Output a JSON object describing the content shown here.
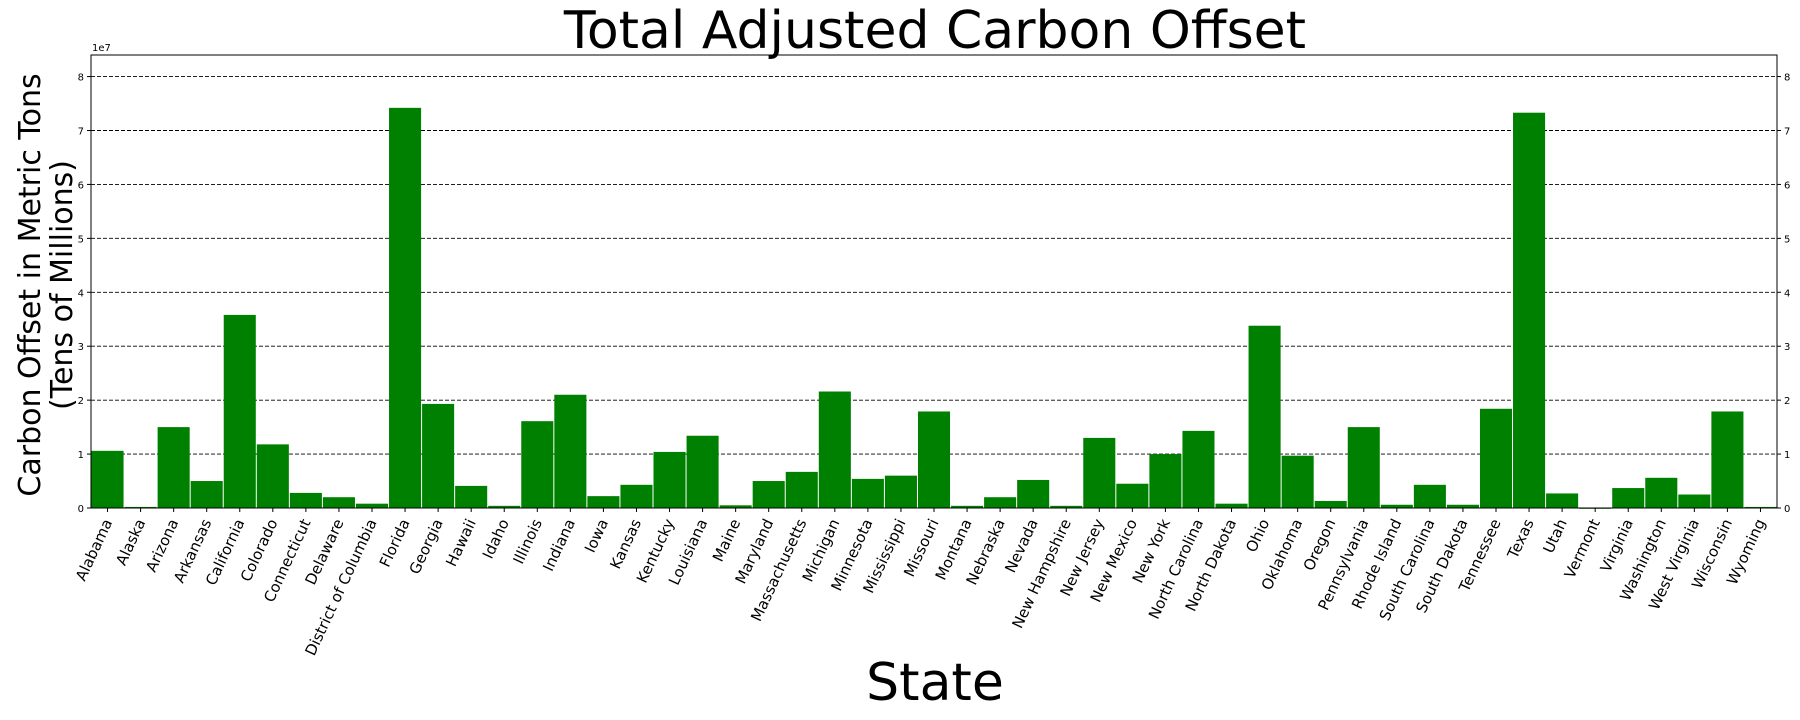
{
  "chart_data": {
    "type": "bar",
    "title": "Total Adjusted Carbon Offset",
    "xlabel": "State",
    "ylabel_line1": "Carbon Offset in Metric Tons",
    "ylabel_line2": "(Tens of Millions)",
    "y_offset_label": "1e7",
    "ylim": [
      0,
      8.4
    ],
    "yticks": [
      0,
      1,
      2,
      3,
      4,
      5,
      6,
      7,
      8
    ],
    "grid": "horizontal dashed",
    "bar_color": "#008000",
    "categories": [
      "Alabama",
      "Alaska",
      "Arizona",
      "Arkansas",
      "California",
      "Colorado",
      "Connecticut",
      "Delaware",
      "District of Columbia",
      "Florida",
      "Georgia",
      "Hawaii",
      "Idaho",
      "Illinois",
      "Indiana",
      "Iowa",
      "Kansas",
      "Kentucky",
      "Louisiana",
      "Maine",
      "Maryland",
      "Massachusetts",
      "Michigan",
      "Minnesota",
      "Mississippi",
      "Missouri",
      "Montana",
      "Nebraska",
      "Nevada",
      "New Hampshire",
      "New Jersey",
      "New Mexico",
      "New York",
      "North Carolina",
      "North Dakota",
      "Ohio",
      "Oklahoma",
      "Oregon",
      "Pennsylvania",
      "Rhode Island",
      "South Carolina",
      "South Dakota",
      "Tennessee",
      "Texas",
      "Utah",
      "Vermont",
      "Virginia",
      "Washington",
      "West Virginia",
      "Wisconsin",
      "Wyoming"
    ],
    "values": [
      1.06,
      0.02,
      1.5,
      0.5,
      3.58,
      1.18,
      0.28,
      0.2,
      0.08,
      7.42,
      1.93,
      0.41,
      0.04,
      1.61,
      2.1,
      0.22,
      0.43,
      1.04,
      1.34,
      0.05,
      0.5,
      0.67,
      2.16,
      0.54,
      0.6,
      1.79,
      0.04,
      0.2,
      0.52,
      0.04,
      1.3,
      0.45,
      1.0,
      1.43,
      0.08,
      3.38,
      0.97,
      0.13,
      1.5,
      0.06,
      0.43,
      0.06,
      1.84,
      7.33,
      0.27,
      0.0,
      0.37,
      0.56,
      0.25,
      1.79,
      0.02
    ]
  }
}
